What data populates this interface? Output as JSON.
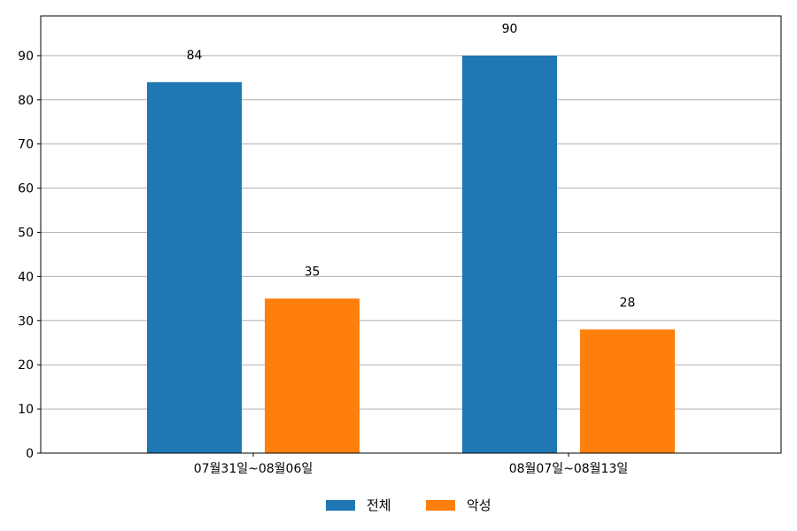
{
  "chart_data": {
    "type": "bar",
    "categories": [
      "07월31일~08월06일",
      "08월07일~08월13일"
    ],
    "series": [
      {
        "name": "전체",
        "values": [
          84,
          90
        ],
        "color": "#1f77b4"
      },
      {
        "name": "악성",
        "values": [
          35,
          28
        ],
        "color": "#ff7f0e"
      }
    ],
    "ylim": [
      0,
      99
    ],
    "yticks": [
      0,
      10,
      20,
      30,
      40,
      50,
      60,
      70,
      80,
      90
    ],
    "grid": true,
    "legend_position": "bottom-center",
    "data_labels": true
  }
}
